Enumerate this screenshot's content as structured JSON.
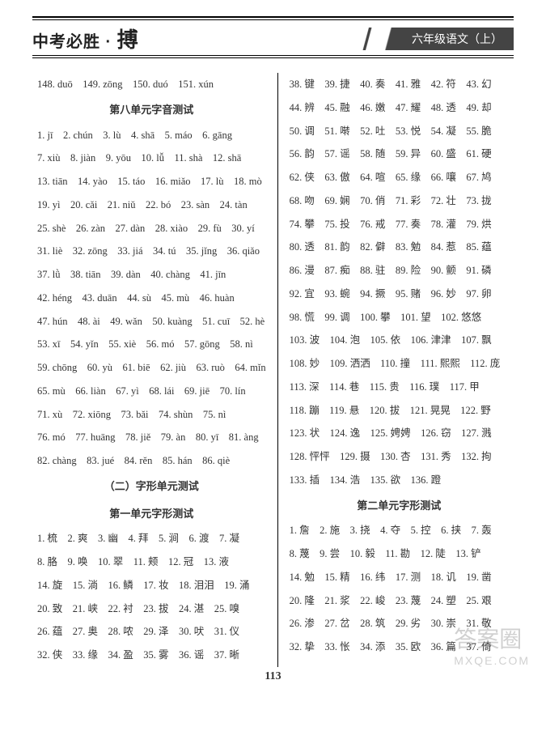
{
  "header": {
    "left_prefix": "中考必胜 · ",
    "left_big": "搏",
    "right": "六年级语文（上）"
  },
  "left_col": {
    "top_row": "148. duō　149. zōng　150. duó　151. xún",
    "sec1_title": "第八单元字音测试",
    "sec1_rows": [
      "1. jī　2. chún　3. lù　4. shā　5. máo　6. gāng",
      "7. xiù　8. jiàn　9. yōu　10. lǚ　11. shà　12. shā",
      "13. tiān　14. yào　15. táo　16. miǎo　17. lù　18. mò",
      "19. yì　20. cǎi　21. niǔ　22. bó　23. sàn　24. tàn",
      "25. shè　26. zàn　27. dàn　28. xiào　29. fù　30. yí",
      "31. liè　32. zōng　33. jiá　34. tú　35. jǐng　36. qiǎo",
      "37. lǜ　38. tiān　39. dàn　40. chàng　41. jīn",
      "42. héng　43. duān　44. sù　45. mù　46. huàn",
      "47. hún　48. ài　49. wǎn　50. kuàng　51. cuī　52. hè",
      "53. xī　54. yǐn　55. xiè　56. mó　57. gōng　58. nì",
      "59. chōng　60. yù　61. biē　62. jiù　63. ruò　64. mǐn",
      "65. mù　66. liàn　67. yì　68. lái　69. jiē　70. lín",
      "71. xù　72. xiōng　73. bǎi　74. shùn　75. nì",
      "76. mó　77. huāng　78. jiě　79. àn　80. yī　81. àng",
      "82. chàng　83. jué　84. rěn　85. hán　86. qiè"
    ],
    "sec2_title": "（二）字形单元测试",
    "sec3_title": "第一单元字形测试",
    "sec3_rows": [
      "1. 梳　2. 爽　3. 幽　4. 拜　5. 涧　6. 渡　7. 凝",
      "8. 胳　9. 唤　10. 翠　11. 颊　12. 冠　13. 液",
      "14. 旋　15. 淌　16. 鳞　17. 妆　18. 泪泪　19. 涌",
      "20. 致　21. 峡　22. 衬　23. 拔　24. 湛　25. 嗅",
      "26. 蕴　27. 奥　28. 哝　29. 泽　30. 吠　31. 仪",
      "32. 侠　33. 缘　34. 盈　35. 雾　36. 谣　37. 晰"
    ]
  },
  "right_col": {
    "top_rows": [
      "38. 键　39. 捷　40. 奏　41. 雅　42. 符　43. 幻",
      "44. 辨　45. 融　46. 嫩　47. 耀　48. 透　49. 却",
      "50. 调　51. 啭　52. 吐　53. 悦　54. 凝　55. 脆",
      "56. 韵　57. 谣　58. 随　59. 异　60. 盛　61. 硬",
      "62. 侠　63. 傲　64. 喧　65. 缘　66. 嚷　67. 鸠",
      "68. 吻　69. 娴　70. 俏　71. 彩　72. 壮　73. 拢",
      "74. 攀　75. 投　76. 戒　77. 奏　78. 灌　79. 烘",
      "80. 透　81. 韵　82. 僻　83. 勉　84. 惹　85. 蕴",
      "86. 漫　87. 痴　88. 驻　89. 险　90. 颤　91. 磷",
      "92. 宜　93. 蜿　94. 撅　95. 赌　96. 妙　97. 卵",
      "98. 慌　99. 调　100. 攀　101. 望　102. 悠悠",
      "103. 波　104. 泡　105. 依　106. 津津　107. 飘",
      "108. 妙　109. 洒洒　110. 撞　111. 熙熙　112. 庞",
      "113. 深　114. 巷　115. 贵　116. 璞　117. 甲",
      "118. 蹦　119. 悬　120. 拔　121. 晃晃　122. 野",
      "123. 状　124. 逸　125. 娉娉　126. 窃　127. 溅",
      "128. 怦怦　129. 摄　130. 杏　131. 秀　132. 拘",
      "133. 插　134. 浩　135. 欲　136. 蹬"
    ],
    "sec_title": "第二单元字形测试",
    "sec_rows": [
      "1. 詹　2. 施　3. 挠　4. 夺　5. 控　6. 挟　7. 轰",
      "8. 蔑　9. 尝　10. 毅　11. 勘　12. 陡　13. 铲",
      "14. 勉　15. 精　16. 纬　17. 测　18. 讥　19. 凿",
      "20. 隆　21. 浆　22. 峻　23. 蔑　24. 塑　25. 艰",
      "26. 渗　27. 岔　28. 筑　29. 劣　30. 崇　31. 敬",
      "32. 挚　33. 怅　34. 添　35. 欧　36. 篇　37. 倚"
    ]
  },
  "page_number": "113",
  "watermark": {
    "main": "答案圈",
    "sub": "MXQE.COM"
  }
}
